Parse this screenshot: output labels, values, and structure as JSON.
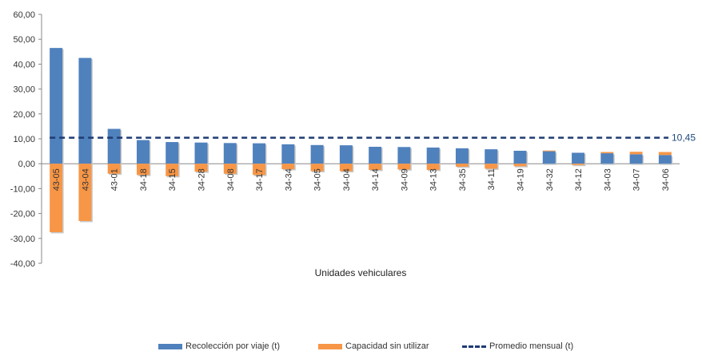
{
  "chart_data": {
    "type": "bar",
    "stacked": true,
    "categories": [
      "43-05",
      "43-04",
      "43-01",
      "34-18",
      "34-15",
      "34-28",
      "34-08",
      "34-17",
      "34-34",
      "34-05",
      "34-04",
      "34-14",
      "34-09",
      "34-13",
      "34-35",
      "34-11",
      "34-19",
      "34-32",
      "34-12",
      "34-03",
      "34-07",
      "34-06"
    ],
    "series": [
      {
        "name": "Recolección por viaje (t)",
        "color": "#4f81bd",
        "values": [
          46.5,
          42.5,
          14.0,
          9.5,
          8.7,
          8.5,
          8.3,
          8.2,
          7.8,
          7.5,
          7.4,
          6.8,
          6.7,
          6.5,
          6.2,
          5.8,
          5.2,
          5.0,
          4.4,
          4.2,
          3.8,
          3.5
        ]
      },
      {
        "name": "Capacidad sin utilizar",
        "color": "#f79646",
        "values": [
          -27.5,
          -23.0,
          -4.0,
          -4.5,
          -5.0,
          -3.2,
          -4.0,
          -4.5,
          -2.2,
          -3.0,
          -3.0,
          -2.5,
          -2.3,
          -2.5,
          -1.2,
          -2.0,
          -1.0,
          0.3,
          -0.5,
          0.5,
          1.0,
          1.2
        ]
      }
    ],
    "average": {
      "name": "Promedio mensual (t)",
      "value": 10.45,
      "label": "10,45",
      "color": "#1f3b73"
    },
    "xlabel": "Unidades vehiculares",
    "ylabel": "",
    "ylim": [
      -40,
      60
    ],
    "yticks": [
      "60,00",
      "50,00",
      "40,00",
      "30,00",
      "20,00",
      "10,00",
      "0,00",
      "-10,00",
      "-20,00",
      "-30,00",
      "-40,00"
    ],
    "ytick_values": [
      60,
      50,
      40,
      30,
      20,
      10,
      0,
      -10,
      -20,
      -30,
      -40
    ],
    "grid": false,
    "legend_position": "bottom"
  }
}
